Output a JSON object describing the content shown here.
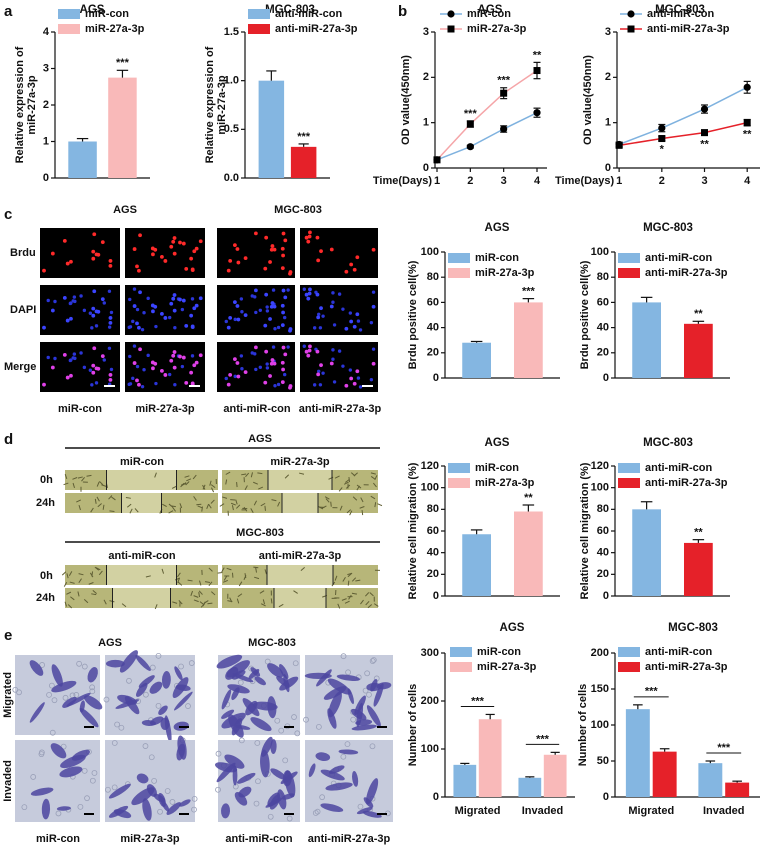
{
  "panel_labels": [
    "a",
    "b",
    "c",
    "d",
    "e"
  ],
  "brdu_images": {
    "titles": [
      "AGS",
      "MGC-803"
    ],
    "rows": [
      "Brdu",
      "DAPI",
      "Merge"
    ],
    "columns": [
      "miR-con",
      "miR-27a-3p",
      "anti-miR-con",
      "anti-miR-27a-3p"
    ]
  },
  "scratch_images": {
    "groups": [
      {
        "title": "AGS",
        "columns": [
          "miR-con",
          "miR-27a-3p"
        ],
        "rows": [
          "0h",
          "24h"
        ]
      },
      {
        "title": "MGC-803",
        "columns": [
          "anti-miR-con",
          "anti-miR-27a-3p"
        ],
        "rows": [
          "0h",
          "24h"
        ]
      }
    ]
  },
  "transwell_images": {
    "titles": [
      "AGS",
      "MGC-803"
    ],
    "rows": [
      "Migrated",
      "Invaded"
    ],
    "columns": [
      "miR-con",
      "miR-27a-3p",
      "anti-miR-con",
      "anti-miR-27a-3p"
    ]
  },
  "chart_data": [
    {
      "type": "bar",
      "title": "AGS",
      "ylabel": [
        "Relative expression of",
        "miR-27a-3p"
      ],
      "categories": [
        null
      ],
      "series": [
        {
          "name": "miR-con",
          "color": "#84b6e1",
          "values": [
            1.0
          ],
          "errors": [
            0.08
          ]
        },
        {
          "name": "miR-27a-3p",
          "color": "#f9b9b9",
          "values": [
            2.75
          ],
          "errors": [
            0.2
          ],
          "annotations": [
            "***"
          ]
        }
      ],
      "ylim": [
        0,
        4
      ],
      "yticks": [
        0,
        1,
        2,
        3,
        4
      ]
    },
    {
      "type": "bar",
      "title": "MGC-803",
      "ylabel": [
        "Relative expression of",
        "miR-27a-3p"
      ],
      "categories": [
        null
      ],
      "series": [
        {
          "name": "anti-miR-con",
          "color": "#84b6e1",
          "values": [
            1.0
          ],
          "errors": [
            0.1
          ]
        },
        {
          "name": "anti-miR-27a-3p",
          "color": "#e52129",
          "values": [
            0.32
          ],
          "errors": [
            0.03
          ],
          "annotations": [
            "***"
          ]
        }
      ],
      "ylim": [
        0,
        1.5
      ],
      "yticks": [
        {
          "value": 0,
          "label": "0.0"
        },
        0.5,
        {
          "value": 1,
          "label": "1.0"
        },
        1.5
      ]
    },
    {
      "type": "line",
      "title": "AGS",
      "ylabel": "OD value(450nm)",
      "xlabel": "Time(Days)",
      "x": [
        1,
        2,
        3,
        4
      ],
      "xlim": [
        0.94,
        4.3
      ],
      "xticks": [
        1,
        2,
        3,
        4
      ],
      "ylim": [
        0,
        3
      ],
      "yticks": [
        0,
        1,
        2,
        3
      ],
      "annotation_side": "above",
      "series": [
        {
          "name": "miR-con",
          "color": "#7fb2df",
          "marker": "circle",
          "marker_color": "#000000",
          "values": [
            0.18,
            0.47,
            0.86,
            1.22
          ],
          "errors": [
            0.03,
            0.03,
            0.07,
            0.1
          ]
        },
        {
          "name": "miR-27a-3p",
          "color": "#f5a5a8",
          "marker": "square",
          "marker_color": "#000000",
          "values": [
            0.18,
            0.97,
            1.65,
            2.15
          ],
          "errors": [
            0.03,
            0.07,
            0.12,
            0.18
          ],
          "annotations": [
            null,
            "***",
            "***",
            "**"
          ]
        }
      ]
    },
    {
      "type": "line",
      "title": "MGC-803",
      "ylabel": "OD value(450nm)",
      "xlabel": "Time(Days)",
      "x": [
        1,
        2,
        3,
        4
      ],
      "xlim": [
        0.95,
        4.3
      ],
      "xticks": [
        1,
        2,
        3,
        4
      ],
      "ylim": [
        0,
        3
      ],
      "yticks": [
        0,
        1,
        2,
        3
      ],
      "annotation_side": "below",
      "series": [
        {
          "name": "anti-miR-con",
          "color": "#7fb2df",
          "marker": "circle",
          "marker_color": "#000000",
          "values": [
            0.52,
            0.88,
            1.3,
            1.78
          ],
          "errors": [
            0.05,
            0.08,
            0.09,
            0.13
          ]
        },
        {
          "name": "anti-miR-27a-3p",
          "color": "#e52129",
          "marker": "square",
          "marker_color": "#000000",
          "values": [
            0.5,
            0.65,
            0.78,
            1.0
          ],
          "errors": [
            0.04,
            0.05,
            0.06,
            0.07
          ],
          "annotations": [
            null,
            "*",
            "**",
            "**"
          ]
        }
      ]
    },
    {
      "type": "bar",
      "title": "AGS",
      "ylabel": "Brdu positive cell(%)",
      "categories": [
        null
      ],
      "series": [
        {
          "name": "miR-con",
          "color": "#84b6e1",
          "values": [
            28
          ],
          "errors": [
            1
          ]
        },
        {
          "name": "miR-27a-3p",
          "color": "#f9b9b9",
          "values": [
            60
          ],
          "errors": [
            3
          ],
          "annotations": [
            "***"
          ]
        }
      ],
      "ylim": [
        0,
        100
      ],
      "yticks": [
        0,
        20,
        40,
        60,
        80,
        100
      ]
    },
    {
      "type": "bar",
      "title": "MGC-803",
      "ylabel": "Brdu positive cell(%)",
      "categories": [
        null
      ],
      "series": [
        {
          "name": "anti-miR-con",
          "color": "#84b6e1",
          "values": [
            60
          ],
          "errors": [
            4
          ]
        },
        {
          "name": "anti-miR-27a-3p",
          "color": "#e52129",
          "values": [
            43
          ],
          "errors": [
            2
          ],
          "annotations": [
            "**"
          ]
        }
      ],
      "ylim": [
        0,
        100
      ],
      "yticks": [
        0,
        20,
        40,
        60,
        80,
        100
      ]
    },
    {
      "type": "bar",
      "title": "AGS",
      "ylabel": "Relative cell migration (%)",
      "categories": [
        null
      ],
      "series": [
        {
          "name": "miR-con",
          "color": "#84b6e1",
          "values": [
            57
          ],
          "errors": [
            4
          ]
        },
        {
          "name": "miR-27a-3p",
          "color": "#f9b9b9",
          "values": [
            78
          ],
          "errors": [
            6
          ],
          "annotations": [
            "**"
          ]
        }
      ],
      "ylim": [
        0,
        120
      ],
      "yticks": [
        0,
        20,
        40,
        60,
        80,
        100,
        120
      ]
    },
    {
      "type": "bar",
      "title": "MGC-803",
      "ylabel": "Relative cell migration (%)",
      "categories": [
        null
      ],
      "series": [
        {
          "name": "anti-miR-con",
          "color": "#84b6e1",
          "values": [
            80
          ],
          "errors": [
            7
          ]
        },
        {
          "name": "anti-miR-27a-3p",
          "color": "#e52129",
          "values": [
            49
          ],
          "errors": [
            3
          ],
          "annotations": [
            "**"
          ]
        }
      ],
      "ylim": [
        0,
        120
      ],
      "yticks": [
        0,
        20,
        40,
        60,
        80,
        100,
        120
      ]
    },
    {
      "type": "bar",
      "title": "AGS",
      "ylabel": "Number of cells",
      "categories": [
        "Migrated",
        "Invaded"
      ],
      "bracket": true,
      "series": [
        {
          "name": "miR-con",
          "color": "#84b6e1",
          "values": [
            67,
            40
          ],
          "errors": [
            3,
            2
          ]
        },
        {
          "name": "miR-27a-3p",
          "color": "#f9b9b9",
          "values": [
            162,
            88
          ],
          "errors": [
            10,
            5
          ],
          "annotations": [
            "***",
            "***"
          ]
        }
      ],
      "ylim": [
        0,
        300
      ],
      "yticks": [
        0,
        100,
        200,
        300
      ]
    },
    {
      "type": "bar",
      "title": "MGC-803",
      "ylabel": "Number of cells",
      "categories": [
        "Migrated",
        "Invaded"
      ],
      "bracket": true,
      "series": [
        {
          "name": "anti-miR-con",
          "color": "#84b6e1",
          "values": [
            122,
            47
          ],
          "errors": [
            6,
            3
          ]
        },
        {
          "name": "anti-miR-27a-3p",
          "color": "#e52129",
          "values": [
            63,
            20
          ],
          "errors": [
            4,
            2
          ],
          "annotations": [
            "***",
            "***"
          ]
        }
      ],
      "ylim": [
        0,
        200
      ],
      "yticks": [
        0,
        50,
        100,
        150,
        200
      ]
    }
  ]
}
